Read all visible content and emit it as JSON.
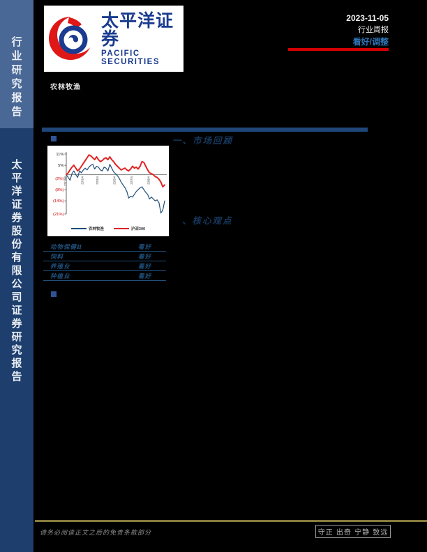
{
  "page": {
    "background": "#000000"
  },
  "sidebar": {
    "top_label": "行业研究报告",
    "bottom_label": "太平洋证券股份有限公司证券研究报告",
    "top_bg": "#4a6896",
    "bottom_bg": "#1e3f6e"
  },
  "header": {
    "logo_cn": "太平洋证券",
    "logo_en": "PACIFIC SECURITIES",
    "date": "2023-11-05",
    "report_type": "行业周报",
    "rating": "看好/调整",
    "industry": "农林牧渔",
    "accent_red": "#d40000",
    "accent_blue": "#2e74b5"
  },
  "sections": {
    "s1_title": "一、市场回顾",
    "s2_title": "、核心观点"
  },
  "chart_data": {
    "type": "line",
    "title": "",
    "xlabel": "",
    "ylabel": "",
    "x_labels": [
      "22/11/4",
      "23/1/4",
      "23/3/4",
      "23/5/4",
      "23/7/4",
      "23/9/4"
    ],
    "x_label_weeks": [
      0,
      9,
      17,
      26,
      35,
      44
    ],
    "y_ticks": [
      "11%",
      "5%",
      "(2%)",
      "(8%)",
      "(14%)",
      "(21%)"
    ],
    "y_tick_values": [
      11,
      5,
      -2,
      -8,
      -14,
      -21
    ],
    "ylim": [
      -21,
      11
    ],
    "grid": false,
    "legend_position": "bottom",
    "series": [
      {
        "name": "农林牧渔",
        "color": "#1f4e79",
        "width": 1.2,
        "values": [
          0,
          -1.5,
          -3,
          0.5,
          2,
          0,
          -1.5,
          2,
          1,
          2.5,
          3.5,
          2.5,
          4,
          5,
          5.5,
          3,
          4.5,
          4,
          2.5,
          2,
          4,
          3.5,
          2,
          5.5,
          3.5,
          1.5,
          0.5,
          -0.5,
          -2,
          -4,
          -5.5,
          -7,
          -9,
          -12.5,
          -11.5,
          -12,
          -10.5,
          -9,
          -8,
          -7,
          -6.5,
          -8,
          -9.5,
          -10.5,
          -13,
          -12,
          -13,
          -14,
          -13.5,
          -15,
          -20.5,
          -19,
          -14
        ]
      },
      {
        "name": "沪深300",
        "color": "#e02424",
        "width": 2,
        "values": [
          0,
          1,
          2.5,
          4,
          5,
          3.5,
          2,
          3,
          4.5,
          6,
          7.5,
          9,
          10.5,
          10,
          9,
          8,
          9.5,
          8,
          7,
          7.5,
          8.5,
          9,
          8,
          9.5,
          8,
          7,
          5.5,
          4.5,
          3.5,
          2.5,
          3,
          3.5,
          2.5,
          2,
          3,
          4.5,
          3.5,
          4,
          3,
          4.5,
          7,
          6.5,
          4.5,
          2.5,
          1,
          0.5,
          0,
          -1,
          -1.5,
          -2.5,
          -4,
          -6.5,
          -5.5
        ]
      }
    ]
  },
  "table": {
    "rows": [
      {
        "label": "动物保健Ⅱ",
        "value": "看好"
      },
      {
        "label": "饲料",
        "value": "看好"
      },
      {
        "label": "养殖业",
        "value": "看好"
      },
      {
        "label": "种植业",
        "value": "看好"
      }
    ]
  },
  "footer": {
    "disclaimer": "请务必阅读正文之后的免责条款部分",
    "motto": "守正 出奇 宁静 致远",
    "line_color": "#857a3d"
  }
}
